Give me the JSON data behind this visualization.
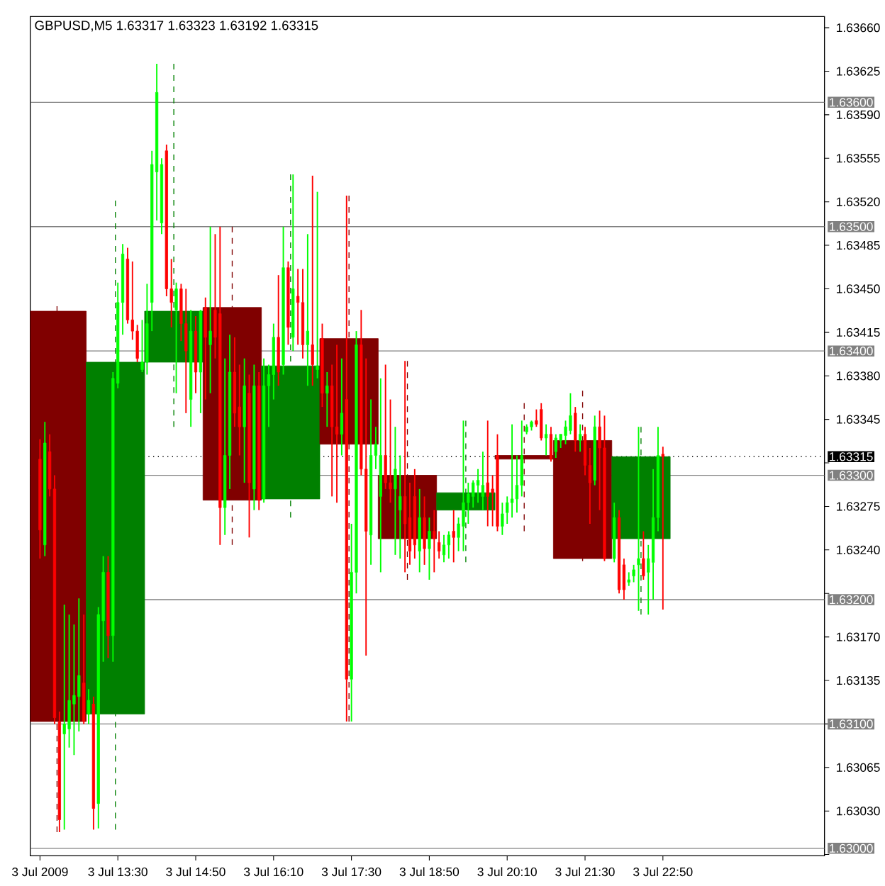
{
  "chart_data": {
    "type": "candlestick",
    "title": "GBPUSD,M5 1.63317 1.63323 1.63192 1.63315",
    "xlim": [
      "2009-07-03T12:00",
      "2009-07-04T01:36"
    ],
    "ylim": [
      1.62994,
      1.63669
    ],
    "xticks": [
      {
        "value": "2009-07-03T12:10",
        "label": "3 Jul 2009"
      },
      {
        "value": "2009-07-03T13:30",
        "label": "3 Jul 13:30"
      },
      {
        "value": "2009-07-03T14:50",
        "label": "3 Jul 14:50"
      },
      {
        "value": "2009-07-03T16:10",
        "label": "3 Jul 16:10"
      },
      {
        "value": "2009-07-03T17:30",
        "label": "3 Jul 17:30"
      },
      {
        "value": "2009-07-03T18:50",
        "label": "3 Jul 18:50"
      },
      {
        "value": "2009-07-03T20:10",
        "label": "3 Jul 20:10"
      },
      {
        "value": "2009-07-03T21:30",
        "label": "3 Jul 21:30"
      },
      {
        "value": "2009-07-03T22:50",
        "label": "3 Jul 22:50"
      }
    ],
    "yticks": [
      {
        "value": 1.6366,
        "label": "1.63660"
      },
      {
        "value": 1.63625,
        "label": "1.63625"
      },
      {
        "value": 1.6359,
        "label": "1.63590"
      },
      {
        "value": 1.63555,
        "label": "1.63555"
      },
      {
        "value": 1.6352,
        "label": "1.63520"
      },
      {
        "value": 1.63485,
        "label": "1.63485"
      },
      {
        "value": 1.6345,
        "label": "1.63450"
      },
      {
        "value": 1.63415,
        "label": "1.63415"
      },
      {
        "value": 1.6338,
        "label": "1.63380"
      },
      {
        "value": 1.63345,
        "label": "1.63345"
      },
      {
        "value": 1.6331,
        "label": null
      },
      {
        "value": 1.63275,
        "label": "1.63275"
      },
      {
        "value": 1.6324,
        "label": "1.63240"
      },
      {
        "value": 1.63205,
        "label": null
      },
      {
        "value": 1.6317,
        "label": "1.63170"
      },
      {
        "value": 1.63135,
        "label": "1.63135"
      },
      {
        "value": 1.631,
        "label": null
      },
      {
        "value": 1.63065,
        "label": "1.63065"
      },
      {
        "value": 1.6303,
        "label": "1.63030"
      },
      {
        "value": 1.62995,
        "label": null
      }
    ],
    "ref_lines": [
      {
        "axis": "y",
        "value": 1.636,
        "label": "1.63600",
        "color": "#808080"
      },
      {
        "axis": "y",
        "value": 1.635,
        "label": "1.63500",
        "color": "#808080"
      },
      {
        "axis": "y",
        "value": 1.634,
        "label": "1.63400",
        "color": "#808080"
      },
      {
        "axis": "y",
        "value": 1.633,
        "label": "1.63300",
        "color": "#808080"
      },
      {
        "axis": "y",
        "value": 1.632,
        "label": "1.63200",
        "color": "#808080"
      },
      {
        "axis": "y",
        "value": 1.631,
        "label": "1.63100",
        "color": "#808080"
      },
      {
        "axis": "y",
        "value": 1.63,
        "label": "1.63000",
        "color": "#808080"
      },
      {
        "axis": "y",
        "value": 1.63315,
        "label": "1.63315",
        "color": "#000000",
        "line_style": "dotted"
      }
    ],
    "series": [
      {
        "x": [
          "2009-07-03T12:27:30",
          "2009-07-03T13:27:30",
          "2009-07-03T14:27:30",
          "2009-07-03T15:27:30",
          "2009-07-03T16:27:30",
          "2009-07-03T17:27:30",
          "2009-07-03T18:27:30",
          "2009-07-03T19:27:30",
          "2009-07-03T20:27:30",
          "2009-07-03T21:27:30",
          "2009-07-03T22:27:30"
        ],
        "colors": [
          "#800000",
          "#008000",
          "#008000",
          "#800000",
          "#008000",
          "#800000",
          "#800000",
          "#008000",
          "#800000",
          "#800000",
          "#008000"
        ],
        "line_style": "dashed",
        "ohlc": [
          [
            1.63432,
            1.63436,
            1.63013,
            1.63102
          ],
          [
            1.63108,
            1.63521,
            1.63015,
            1.63391
          ],
          [
            1.63391,
            1.63631,
            1.63339,
            1.63432
          ],
          [
            1.63435,
            1.635,
            1.63244,
            1.6328
          ],
          [
            1.63281,
            1.63542,
            1.63266,
            1.63388
          ],
          [
            1.6341,
            1.63525,
            1.63102,
            1.63325
          ],
          [
            1.633,
            1.63392,
            1.63216,
            1.63249
          ],
          [
            1.63272,
            1.63344,
            1.6323,
            1.63286
          ],
          [
            1.63316,
            1.63358,
            1.63255,
            1.63313
          ],
          [
            1.63328,
            1.63368,
            1.63231,
            1.63233
          ],
          [
            1.63249,
            1.63339,
            1.63188,
            1.63315
          ]
        ]
      },
      {
        "x": [
          "2009-07-03T12:10",
          "2009-07-03T12:15",
          "2009-07-03T12:20",
          "2009-07-03T12:25",
          "2009-07-03T12:30",
          "2009-07-03T12:35",
          "2009-07-03T12:40",
          "2009-07-03T12:45",
          "2009-07-03T12:50",
          "2009-07-03T12:55",
          "2009-07-03T13:00",
          "2009-07-03T13:05",
          "2009-07-03T13:10",
          "2009-07-03T13:15",
          "2009-07-03T13:20",
          "2009-07-03T13:25",
          "2009-07-03T13:30",
          "2009-07-03T13:35",
          "2009-07-03T13:40",
          "2009-07-03T13:45",
          "2009-07-03T13:50",
          "2009-07-03T13:55",
          "2009-07-03T14:00",
          "2009-07-03T14:05",
          "2009-07-03T14:10",
          "2009-07-03T14:15",
          "2009-07-03T14:20",
          "2009-07-03T14:25",
          "2009-07-03T14:30",
          "2009-07-03T14:35",
          "2009-07-03T14:40",
          "2009-07-03T14:45",
          "2009-07-03T14:50",
          "2009-07-03T14:55",
          "2009-07-03T15:00",
          "2009-07-03T15:05",
          "2009-07-03T15:10",
          "2009-07-03T15:15",
          "2009-07-03T15:20",
          "2009-07-03T15:25",
          "2009-07-03T15:30",
          "2009-07-03T15:35",
          "2009-07-03T15:40",
          "2009-07-03T15:45",
          "2009-07-03T15:50",
          "2009-07-03T15:55",
          "2009-07-03T16:00",
          "2009-07-03T16:05",
          "2009-07-03T16:10",
          "2009-07-03T16:15",
          "2009-07-03T16:20",
          "2009-07-03T16:25",
          "2009-07-03T16:30",
          "2009-07-03T16:35",
          "2009-07-03T16:40",
          "2009-07-03T16:45",
          "2009-07-03T16:50",
          "2009-07-03T16:55",
          "2009-07-03T17:00",
          "2009-07-03T17:05",
          "2009-07-03T17:10",
          "2009-07-03T17:15",
          "2009-07-03T17:20",
          "2009-07-03T17:25",
          "2009-07-03T17:30",
          "2009-07-03T17:35",
          "2009-07-03T17:40",
          "2009-07-03T17:45",
          "2009-07-03T17:50",
          "2009-07-03T17:55",
          "2009-07-03T18:00",
          "2009-07-03T18:05",
          "2009-07-03T18:10",
          "2009-07-03T18:15",
          "2009-07-03T18:20",
          "2009-07-03T18:25",
          "2009-07-03T18:30",
          "2009-07-03T18:35",
          "2009-07-03T18:40",
          "2009-07-03T18:45",
          "2009-07-03T18:50",
          "2009-07-03T18:55",
          "2009-07-03T19:00",
          "2009-07-03T19:05",
          "2009-07-03T19:10",
          "2009-07-03T19:15",
          "2009-07-03T19:20",
          "2009-07-03T19:25",
          "2009-07-03T19:30",
          "2009-07-03T19:35",
          "2009-07-03T19:40",
          "2009-07-03T19:45",
          "2009-07-03T19:50",
          "2009-07-03T19:55",
          "2009-07-03T20:00",
          "2009-07-03T20:05",
          "2009-07-03T20:10",
          "2009-07-03T20:15",
          "2009-07-03T20:20",
          "2009-07-03T20:25",
          "2009-07-03T20:30",
          "2009-07-03T20:35",
          "2009-07-03T20:40",
          "2009-07-03T20:45",
          "2009-07-03T20:50",
          "2009-07-03T20:55",
          "2009-07-03T21:00",
          "2009-07-03T21:05",
          "2009-07-03T21:10",
          "2009-07-03T21:15",
          "2009-07-03T21:20",
          "2009-07-03T21:25",
          "2009-07-03T21:30",
          "2009-07-03T21:35",
          "2009-07-03T21:40",
          "2009-07-03T21:45",
          "2009-07-03T21:50",
          "2009-07-03T22:00",
          "2009-07-03T22:05",
          "2009-07-03T22:10",
          "2009-07-03T22:15",
          "2009-07-03T22:20",
          "2009-07-03T22:25",
          "2009-07-03T22:30",
          "2009-07-03T22:35",
          "2009-07-03T22:40",
          "2009-07-03T22:45",
          "2009-07-03T22:50"
        ],
        "colors": [
          "#ff0000",
          "#00ff00",
          "#ff0000",
          "#ff0000",
          "#ff0000",
          "#00ff00",
          "#00ff00",
          "#00ff00",
          "#00ff00",
          "#ff0000",
          "#00ff00",
          "#ff0000",
          "#00ff00",
          "#00ff00",
          "#ff0000",
          "#00ff00",
          "#00ff00",
          "#00ff00",
          "#ff0000",
          "#ff0000",
          "#ff0000",
          "#00ff00",
          "#00ff00",
          "#00ff00",
          "#00ff00",
          "#00ff00",
          "#ff0000",
          "#ff0000",
          "#00ff00",
          "#ff0000",
          "#ff0000",
          "#00ff00",
          "#ff0000",
          "#00ff00",
          "#ff0000",
          "#00ff00",
          "#ff0000",
          "#ff0000",
          "#00ff00",
          "#00ff00",
          "#ff0000",
          "#ff0000",
          "#00ff00",
          "#ff0000",
          "#00ff00",
          "#ff0000",
          "#00ff00",
          "#00ff00",
          "#00ff00",
          "#ff0000",
          "#00ff00",
          "#ff0000",
          "#00ff00",
          "#ff0000",
          "#ff0000",
          "#00ff00",
          "#ff0000",
          "#00ff00",
          "#ff0000",
          "#00ff00",
          "#ff0000",
          "#ff0000",
          "#00ff00",
          "#ff0000",
          "#00ff00",
          "#00ff00",
          "#ff0000",
          "#ff0000",
          "#00ff00",
          "#00ff00",
          "#00ff00",
          "#ff0000",
          "#ff0000",
          "#00ff00",
          "#00ff00",
          "#ff0000",
          "#ff0000",
          "#ff0000",
          "#00ff00",
          "#ff0000",
          "#00ff00",
          "#ff0000",
          "#ff0000",
          "#00ff00",
          "#00ff00",
          "#ff0000",
          "#00ff00",
          "#00ff00",
          "#00ff00",
          "#00ff00",
          "#00ff00",
          "#00ff00",
          "#ff0000",
          "#ff0000",
          "#ff0000",
          "#00ff00",
          "#00ff00",
          "#00ff00",
          "#00ff00",
          "#00ff00",
          "#00ff00",
          "#00ff00",
          "#ff0000",
          "#ff0000",
          "#00ff00",
          "#ff0000",
          "#00ff00",
          "#00ff00",
          "#00ff00",
          "#00ff00",
          "#ff0000",
          "#00ff00",
          "#ff0000",
          "#ff0000",
          "#00ff00",
          "#ff0000",
          "#ff0000",
          "#00ff00",
          "#ff0000",
          "#ff0000",
          "#00ff00",
          "#00ff00",
          "#00ff00",
          "#ff0000",
          "#00ff00",
          "#00ff00",
          "#00ff00",
          "#ff0000"
        ],
        "ohlc": [
          [
            1.63313,
            1.63329,
            1.63233,
            1.63256
          ],
          [
            1.63244,
            1.63343,
            1.63235,
            1.63326
          ],
          [
            1.63319,
            1.63333,
            1.63283,
            1.63289
          ],
          [
            1.63289,
            1.633,
            1.631,
            1.63105
          ],
          [
            1.63102,
            1.6311,
            1.63013,
            1.63023
          ],
          [
            1.63092,
            1.63196,
            1.63015,
            1.631
          ],
          [
            1.63096,
            1.63188,
            1.63081,
            1.63119
          ],
          [
            1.63116,
            1.6318,
            1.63075,
            1.63123
          ],
          [
            1.63122,
            1.63201,
            1.63094,
            1.63139
          ],
          [
            1.63133,
            1.63188,
            1.631,
            1.63102
          ],
          [
            1.63108,
            1.63128,
            1.631,
            1.63119
          ],
          [
            1.63116,
            1.63122,
            1.63015,
            1.63032
          ],
          [
            1.63036,
            1.63194,
            1.63016,
            1.63188
          ],
          [
            1.63183,
            1.63235,
            1.6315,
            1.63222
          ],
          [
            1.63222,
            1.63235,
            1.63153,
            1.63171
          ],
          [
            1.63171,
            1.63383,
            1.6315,
            1.63378
          ],
          [
            1.63374,
            1.63455,
            1.6337,
            1.63439
          ],
          [
            1.63439,
            1.63486,
            1.63413,
            1.63478
          ],
          [
            1.63474,
            1.63483,
            1.63422,
            1.63425
          ],
          [
            1.63425,
            1.63472,
            1.63409,
            1.63416
          ],
          [
            1.63416,
            1.63421,
            1.63391,
            1.63394
          ],
          [
            1.63385,
            1.63425,
            1.63383,
            1.63391
          ],
          [
            1.63391,
            1.63454,
            1.63381,
            1.63422
          ],
          [
            1.63439,
            1.63561,
            1.63416,
            1.6355
          ],
          [
            1.63544,
            1.63631,
            1.63505,
            1.63608
          ],
          [
            1.63503,
            1.63555,
            1.63494,
            1.6355
          ],
          [
            1.63561,
            1.63566,
            1.63444,
            1.6345
          ],
          [
            1.6345,
            1.63474,
            1.63419,
            1.63439
          ],
          [
            1.63433,
            1.63455,
            1.63366,
            1.6345
          ],
          [
            1.6345,
            1.63454,
            1.63408,
            1.63422
          ],
          [
            1.63422,
            1.6345,
            1.6335,
            1.634
          ],
          [
            1.63361,
            1.63433,
            1.63339,
            1.63416
          ],
          [
            1.63416,
            1.63428,
            1.63366,
            1.63383
          ],
          [
            1.63383,
            1.63433,
            1.6335,
            1.63432
          ],
          [
            1.63435,
            1.63443,
            1.63361,
            1.63411
          ],
          [
            1.63405,
            1.635,
            1.63366,
            1.63416
          ],
          [
            1.63433,
            1.63494,
            1.63394,
            1.63411
          ],
          [
            1.6343,
            1.635,
            1.63244,
            1.63274
          ],
          [
            1.63274,
            1.63394,
            1.63252,
            1.63316
          ],
          [
            1.63316,
            1.63413,
            1.63289,
            1.63383
          ],
          [
            1.63383,
            1.63411,
            1.63339,
            1.6335
          ],
          [
            1.63355,
            1.63389,
            1.63316,
            1.63339
          ],
          [
            1.63339,
            1.63394,
            1.63294,
            1.63372
          ],
          [
            1.63366,
            1.63381,
            1.6325,
            1.63294
          ],
          [
            1.63289,
            1.63389,
            1.63272,
            1.63372
          ],
          [
            1.63372,
            1.63383,
            1.63272,
            1.6328
          ],
          [
            1.63281,
            1.63394,
            1.63278,
            1.63372
          ],
          [
            1.63372,
            1.63389,
            1.63339,
            1.63381
          ],
          [
            1.63381,
            1.63422,
            1.63361,
            1.63411
          ],
          [
            1.63411,
            1.63461,
            1.63372,
            1.63383
          ],
          [
            1.63389,
            1.635,
            1.63381,
            1.63467
          ],
          [
            1.63467,
            1.63472,
            1.63405,
            1.63419
          ],
          [
            1.63411,
            1.63542,
            1.634,
            1.6345
          ],
          [
            1.63444,
            1.63466,
            1.63405,
            1.63439
          ],
          [
            1.63439,
            1.63466,
            1.63394,
            1.63405
          ],
          [
            1.63405,
            1.63494,
            1.63372,
            1.63416
          ],
          [
            1.63405,
            1.63541,
            1.63372,
            1.63389
          ],
          [
            1.63385,
            1.63528,
            1.63378,
            1.63388
          ],
          [
            1.6341,
            1.63422,
            1.63355,
            1.63366
          ],
          [
            1.63366,
            1.63383,
            1.63339,
            1.63372
          ],
          [
            1.63372,
            1.63389,
            1.63283,
            1.63339
          ],
          [
            1.63339,
            1.63405,
            1.63278,
            1.63333
          ],
          [
            1.63333,
            1.63394,
            1.63316,
            1.6335
          ],
          [
            1.63361,
            1.63525,
            1.63102,
            1.63136
          ],
          [
            1.63136,
            1.63261,
            1.63102,
            1.63222
          ],
          [
            1.63222,
            1.63416,
            1.63205,
            1.63405
          ],
          [
            1.63405,
            1.63433,
            1.633,
            1.63305
          ],
          [
            1.63305,
            1.63394,
            1.63155,
            1.63255
          ],
          [
            1.63252,
            1.63361,
            1.63228,
            1.63316
          ],
          [
            1.63316,
            1.63339,
            1.63305,
            1.63325
          ],
          [
            1.63283,
            1.63378,
            1.63222,
            1.63316
          ],
          [
            1.63316,
            1.63389,
            1.63289,
            1.63294
          ],
          [
            1.63294,
            1.63361,
            1.63278,
            1.63289
          ],
          [
            1.63289,
            1.63339,
            1.63236,
            1.63305
          ],
          [
            1.63272,
            1.63316,
            1.63233,
            1.63283
          ],
          [
            1.63283,
            1.63392,
            1.63222,
            1.63261
          ],
          [
            1.63266,
            1.63294,
            1.63228,
            1.63239
          ],
          [
            1.63283,
            1.63305,
            1.63233,
            1.63244
          ],
          [
            1.63239,
            1.63289,
            1.63222,
            1.63266
          ],
          [
            1.63266,
            1.63283,
            1.63228,
            1.63241
          ],
          [
            1.63241,
            1.63266,
            1.63216,
            1.63255
          ],
          [
            1.63255,
            1.63272,
            1.63222,
            1.63249
          ],
          [
            1.63246,
            1.63255,
            1.63233,
            1.63239
          ],
          [
            1.63236,
            1.63252,
            1.6323,
            1.63244
          ],
          [
            1.63244,
            1.63255,
            1.63233,
            1.63252
          ],
          [
            1.63255,
            1.63272,
            1.6323,
            1.6325
          ],
          [
            1.6325,
            1.63266,
            1.63239,
            1.63261
          ],
          [
            1.63259,
            1.63344,
            1.63239,
            1.63278
          ],
          [
            1.63278,
            1.63294,
            1.63261,
            1.63285
          ],
          [
            1.63283,
            1.63296,
            1.63274,
            1.63294
          ],
          [
            1.63292,
            1.63305,
            1.63278,
            1.63296
          ],
          [
            1.63283,
            1.63319,
            1.63272,
            1.63292
          ],
          [
            1.63294,
            1.63344,
            1.63259,
            1.63283
          ],
          [
            1.63289,
            1.633,
            1.63259,
            1.63286
          ],
          [
            1.63316,
            1.63333,
            1.63255,
            1.63259
          ],
          [
            1.63259,
            1.63278,
            1.63252,
            1.63269
          ],
          [
            1.6327,
            1.63283,
            1.63261,
            1.63278
          ],
          [
            1.63278,
            1.63341,
            1.63266,
            1.63281
          ],
          [
            1.63281,
            1.63316,
            1.6327,
            1.63292
          ],
          [
            1.63292,
            1.63344,
            1.63283,
            1.63316
          ],
          [
            1.63335,
            1.63341,
            1.63333,
            1.63339
          ],
          [
            1.63339,
            1.63344,
            1.63336,
            1.63343
          ],
          [
            1.63344,
            1.63353,
            1.63339,
            1.63341
          ],
          [
            1.63353,
            1.63358,
            1.63328,
            1.6333
          ],
          [
            1.6333,
            1.63341,
            1.63316,
            1.63333
          ],
          [
            1.63333,
            1.63339,
            1.63311,
            1.63313
          ],
          [
            1.63319,
            1.63333,
            1.63314,
            1.6333
          ],
          [
            1.63328,
            1.63333,
            1.63322,
            1.63333
          ],
          [
            1.63332,
            1.63344,
            1.63325,
            1.63339
          ],
          [
            1.63336,
            1.63366,
            1.63333,
            1.63348
          ],
          [
            1.6335,
            1.63355,
            1.63319,
            1.63328
          ],
          [
            1.63328,
            1.63341,
            1.63319,
            1.63333
          ],
          [
            1.63333,
            1.63339,
            1.633,
            1.63308
          ],
          [
            1.63308,
            1.63322,
            1.63261,
            1.63294
          ],
          [
            1.63296,
            1.63348,
            1.63292,
            1.63339
          ],
          [
            1.63339,
            1.63352,
            1.63272,
            1.63322
          ],
          [
            1.63322,
            1.63348,
            1.63231,
            1.63233
          ],
          [
            1.63233,
            1.63278,
            1.6323,
            1.63266
          ],
          [
            1.63266,
            1.63272,
            1.63205,
            1.63208
          ],
          [
            1.63228,
            1.63233,
            1.632,
            1.63208
          ],
          [
            1.63214,
            1.63222,
            1.63211,
            1.63216
          ],
          [
            1.63219,
            1.63228,
            1.63214,
            1.63224
          ],
          [
            1.63228,
            1.63339,
            1.63191,
            1.63233
          ],
          [
            1.63233,
            1.63255,
            1.63216,
            1.63219
          ],
          [
            1.63222,
            1.63244,
            1.63188,
            1.63233
          ],
          [
            1.6323,
            1.63305,
            1.632,
            1.63266
          ],
          [
            1.63266,
            1.63339,
            1.63255,
            1.63316
          ],
          [
            1.63317,
            1.63323,
            1.63192,
            1.63315
          ]
        ]
      }
    ]
  }
}
